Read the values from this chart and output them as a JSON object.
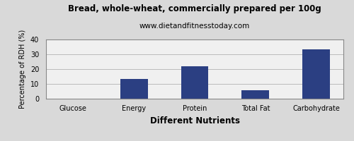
{
  "title": "Bread, whole-wheat, commercially prepared per 100g",
  "subtitle": "www.dietandfitnesstoday.com",
  "xlabel": "Different Nutrients",
  "ylabel": "Percentage of RDH (%)",
  "categories": [
    "Glucose",
    "Energy",
    "Protein",
    "Total Fat",
    "Carbohydrate"
  ],
  "values": [
    0,
    13.5,
    22,
    5.5,
    33.5
  ],
  "bar_color": "#2b3f82",
  "ylim": [
    0,
    40
  ],
  "yticks": [
    0,
    10,
    20,
    30,
    40
  ],
  "background_color": "#d9d9d9",
  "plot_bg_color": "#f0f0f0",
  "title_fontsize": 8.5,
  "subtitle_fontsize": 7.5,
  "xlabel_fontsize": 8.5,
  "ylabel_fontsize": 7,
  "tick_fontsize": 7,
  "grid_color": "#bbbbbb",
  "spine_color": "#888888"
}
